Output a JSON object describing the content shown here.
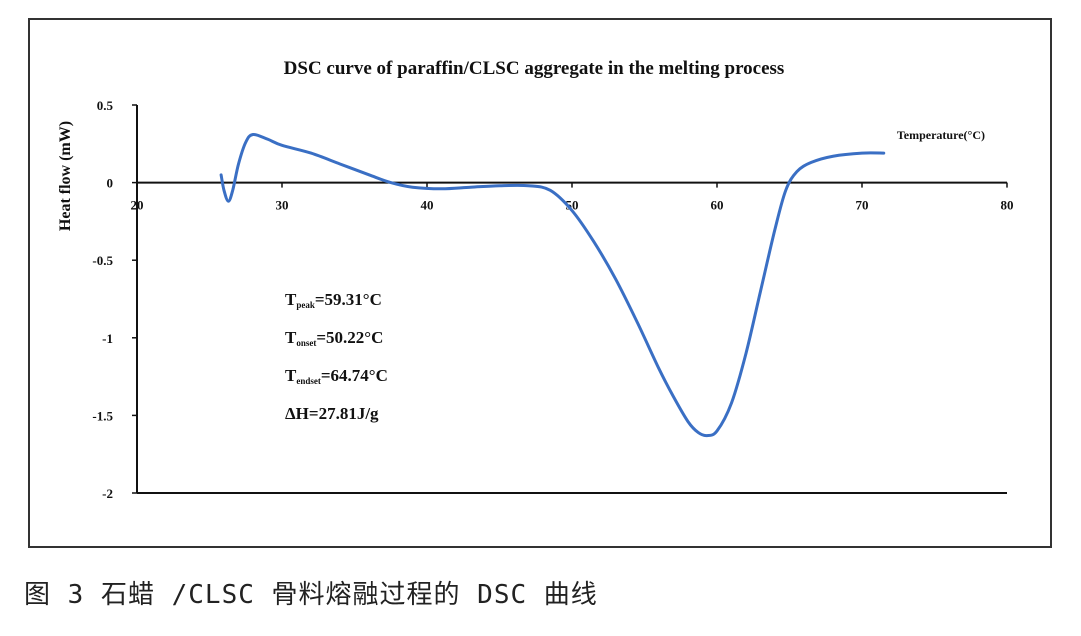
{
  "chart_data": {
    "type": "line",
    "title": "DSC curve of paraffin/CLSC  aggregate in the melting process",
    "xlabel": "Temperature(°C)",
    "ylabel": "Heat flow (mW)",
    "xlim": [
      20,
      80
    ],
    "ylim": [
      -2,
      0.5
    ],
    "x_ticks": [
      "20",
      "30",
      "40",
      "50",
      "60",
      "70",
      "80"
    ],
    "y_ticks": [
      "0.5",
      "0",
      "-0.5",
      "-1",
      "-1.5",
      "-2"
    ],
    "grid": false,
    "series": [
      {
        "color": "#3a6fc4",
        "x": [
          25.8,
          26.0,
          26.3,
          26.6,
          27.0,
          27.5,
          28.0,
          29.0,
          30.0,
          32.0,
          34.0,
          36.0,
          37.5,
          39.0,
          41.0,
          43.0,
          45.0,
          47.0,
          48.5,
          50.0,
          51.5,
          53.0,
          54.5,
          56.0,
          57.0,
          58.0,
          58.7,
          59.3,
          60.0,
          61.0,
          62.0,
          63.0,
          64.0,
          64.74,
          65.5,
          66.5,
          68.0,
          70.0,
          71.5
        ],
        "y": [
          0.05,
          -0.05,
          -0.12,
          -0.05,
          0.12,
          0.26,
          0.31,
          0.28,
          0.24,
          0.19,
          0.12,
          0.05,
          0.0,
          -0.03,
          -0.04,
          -0.03,
          -0.02,
          -0.02,
          -0.05,
          -0.18,
          -0.38,
          -0.62,
          -0.9,
          -1.2,
          -1.38,
          -1.54,
          -1.61,
          -1.63,
          -1.6,
          -1.42,
          -1.1,
          -0.7,
          -0.3,
          -0.05,
          0.07,
          0.13,
          0.17,
          0.19,
          0.19
        ]
      }
    ],
    "annotations": [
      {
        "label": "T",
        "sub": "peak",
        "value": "=59.31°C"
      },
      {
        "label": "T",
        "sub": "onset",
        "value": "=50.22°C"
      },
      {
        "label": "T",
        "sub": "endset",
        "value": "=64.74°C"
      },
      {
        "label": "",
        "sub": "",
        "value": "ΔH=27.81J/g"
      }
    ]
  },
  "caption": "图 3  石蜡 /CLSC 骨料熔融过程的 DSC 曲线"
}
